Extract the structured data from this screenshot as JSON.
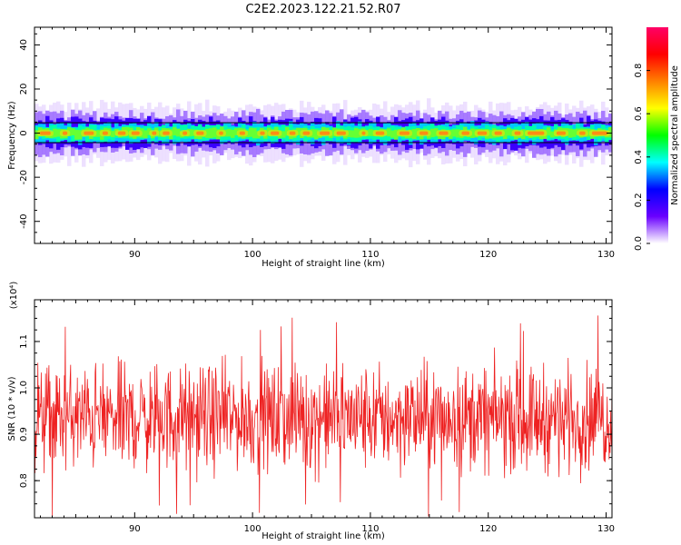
{
  "title": "C2E2.2023.122.21.52.R07",
  "chart_data": [
    {
      "type": "heatmap",
      "xlabel": "Height of straight line (km)",
      "ylabel": "Frequency (Hz)",
      "xlim": [
        81.5,
        130.5
      ],
      "ylim": [
        -50,
        48
      ],
      "xticks": [
        "90",
        "100",
        "110",
        "120",
        "130"
      ],
      "yticks": [
        "40",
        "20",
        "0",
        "-20",
        "-40"
      ],
      "band_center_hz": 0,
      "band_half_width_hz": 4.5,
      "colorbar": {
        "label": "Normalized spectral amplitude",
        "range": [
          0,
          1
        ],
        "ticks": [
          "0.0",
          "0.2",
          "0.4",
          "0.6",
          "0.8"
        ],
        "colors": [
          "#ffffff",
          "#6a00ff",
          "#0000ff",
          "#00ffff",
          "#00ff00",
          "#ffff00",
          "#ff8000",
          "#ff0000",
          "#ff0066"
        ]
      }
    },
    {
      "type": "line",
      "xlabel": "Height of straight line (km)",
      "ylabel": "SNR (10 * v/v)",
      "y_multiplier": "(x10⁴)",
      "xlim": [
        81.5,
        130.5
      ],
      "ylim": [
        0.72,
        1.19
      ],
      "xticks": [
        "90",
        "100",
        "110",
        "120",
        "130"
      ],
      "yticks": [
        "0.8",
        "0.9",
        "1.0",
        "1.1"
      ],
      "series": [
        {
          "color": "#ee2222",
          "mean": 0.935,
          "typical_min": 0.82,
          "typical_max": 1.1,
          "extreme_min": 0.72,
          "extreme_max": 1.16,
          "sample_count": 1200
        }
      ]
    }
  ]
}
